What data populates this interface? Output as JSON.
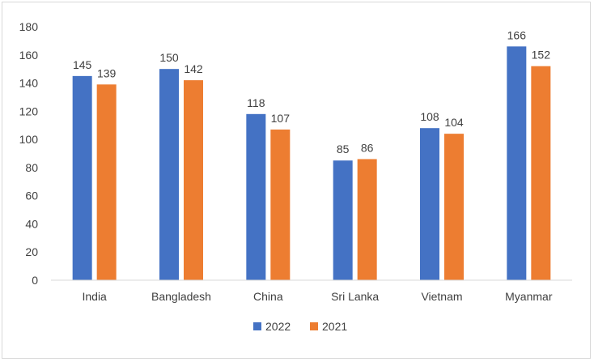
{
  "chart_data": {
    "type": "bar",
    "categories": [
      "India",
      "Bangladesh",
      "China",
      "Sri Lanka",
      "Vietnam",
      "Myanmar"
    ],
    "series": [
      {
        "name": "2022",
        "color": "#4472c4",
        "values": [
          145,
          150,
          118,
          85,
          108,
          166
        ]
      },
      {
        "name": "2021",
        "color": "#ed7d31",
        "values": [
          139,
          142,
          107,
          86,
          104,
          152
        ]
      }
    ],
    "yticks": [
      0,
      20,
      40,
      60,
      80,
      100,
      120,
      140,
      160,
      180
    ],
    "ylim": [
      0,
      180
    ],
    "grid": false,
    "legend_position": "bottom",
    "data_labels": true
  }
}
